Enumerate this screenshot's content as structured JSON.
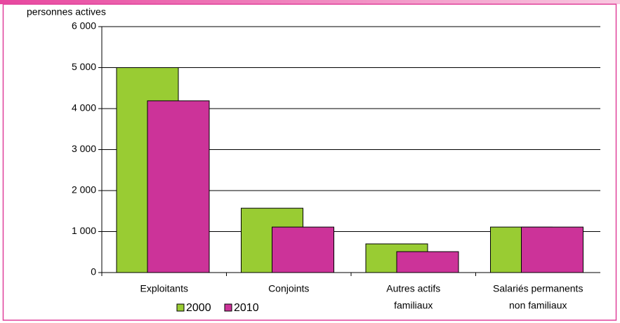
{
  "chart_data": {
    "type": "bar",
    "y_label": "personnes actives",
    "categories": [
      [
        "Exploitants"
      ],
      [
        "Conjoints"
      ],
      [
        "Autres actifs",
        "familiaux"
      ],
      [
        "Salariés permanents",
        "non familiaux"
      ]
    ],
    "series": [
      {
        "name": "2000",
        "color": "#99cc33",
        "values": [
          5000,
          1570,
          700,
          1110
        ]
      },
      {
        "name": "2010",
        "color": "#cc3399",
        "values": [
          4190,
          1110,
          510,
          1110
        ]
      }
    ],
    "ylim": [
      0,
      6000
    ],
    "yticks": [
      0,
      {
        "value": 1000,
        "label": "1 000"
      },
      {
        "value": 2000,
        "label": "2 000"
      },
      {
        "value": 3000,
        "label": "3 000"
      },
      {
        "value": 4000,
        "label": "4 000"
      },
      {
        "value": 5000,
        "label": "5 000"
      },
      {
        "value": 6000,
        "label": "6 000"
      }
    ],
    "grid": true
  }
}
